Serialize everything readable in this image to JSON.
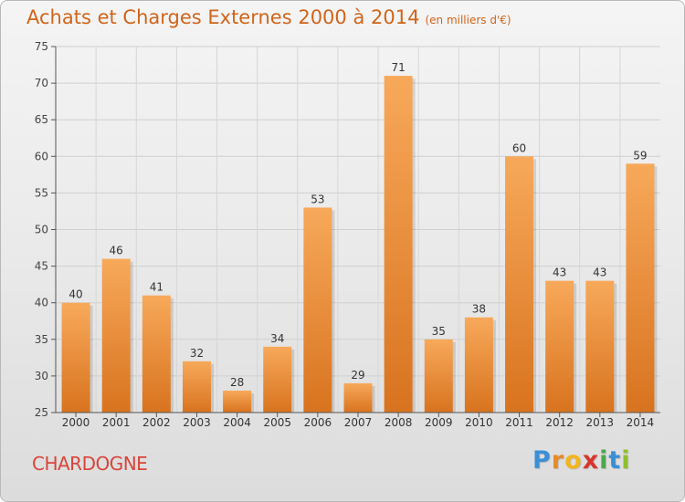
{
  "header": {
    "title": "Achats et Charges Externes 2000 à 2014",
    "unit": "(en milliers d'€)"
  },
  "commune": "CHARDOGNE",
  "logo": {
    "letters": [
      "P",
      "r",
      "o",
      "x",
      "i",
      "t",
      "i"
    ],
    "colors": [
      "#3b8fd6",
      "#e8892a",
      "#f2b51c",
      "#d9342b",
      "#4da84a",
      "#3b8fd6",
      "#8fbf2f"
    ]
  },
  "colors": {
    "bar_light": "#f7a95a",
    "bar_dark": "#d8731f",
    "title": "#d0651a"
  },
  "chart_data": {
    "type": "bar",
    "categories": [
      "2000",
      "2001",
      "2002",
      "2003",
      "2004",
      "2005",
      "2006",
      "2007",
      "2008",
      "2009",
      "2010",
      "2011",
      "2012",
      "2013",
      "2014"
    ],
    "values": [
      40,
      46,
      41,
      32,
      28,
      34,
      53,
      29,
      71,
      35,
      38,
      60,
      43,
      43,
      59
    ],
    "title": "Achats et Charges Externes 2000 à 2014",
    "xlabel": "",
    "ylabel": "",
    "ylim": [
      25,
      75
    ],
    "yticks": [
      25,
      30,
      35,
      40,
      45,
      50,
      55,
      60,
      65,
      70,
      75
    ],
    "grid": true,
    "data_labels": true
  }
}
